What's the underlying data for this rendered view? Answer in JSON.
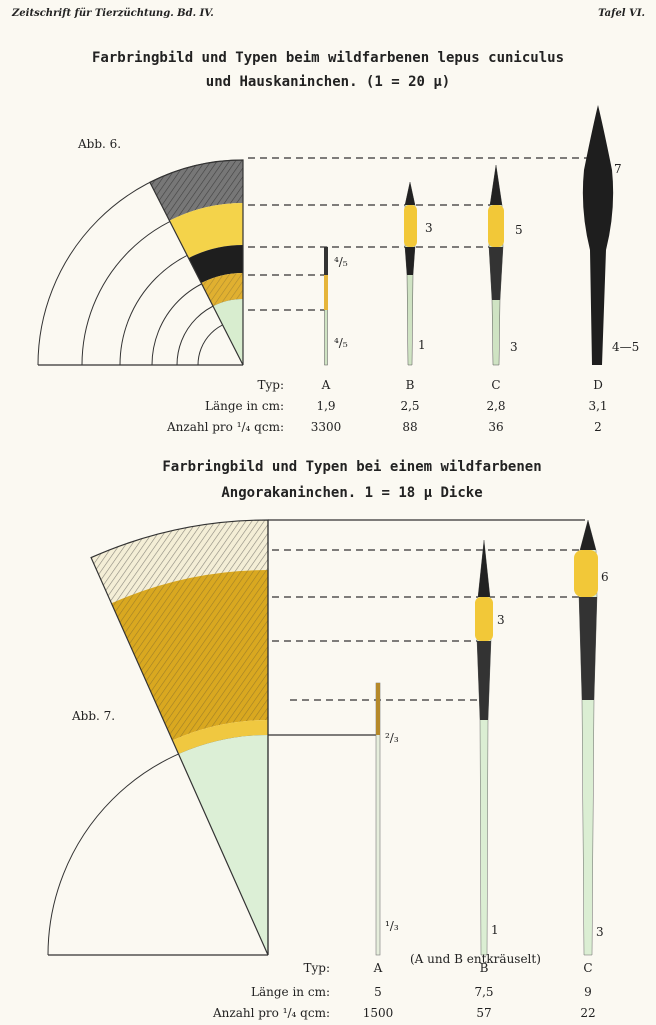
{
  "header": {
    "journal": "Zeitschrift für Tierzüchtung. Bd. IV.",
    "plate": "Tafel VI."
  },
  "figures": [
    {
      "title": [
        "Farbringbild und Typen beim wildfarbenen lepus cuniculus",
        "und Hauskaninchen. (1 = 20 μ)"
      ],
      "label": "Abb. 6.",
      "hair_labels": [
        "⁴/₅",
        "⁴/₅",
        "3",
        "1",
        "5",
        "3",
        "7",
        "4—5"
      ],
      "table": {
        "rows": [
          [
            "Typ:",
            "A",
            "B",
            "C",
            "D"
          ],
          [
            "Länge in cm:",
            "1,9",
            "2,5",
            "2,8",
            "3,1"
          ],
          [
            "Anzahl pro ¹/₄ qcm:",
            "3300",
            "88",
            "36",
            "2"
          ]
        ]
      }
    },
    {
      "title": [
        "Farbringbild und Typen bei einem wildfarbenen",
        "Angorakaninchen. 1 = 18 μ Dicke"
      ],
      "label": "Abb. 7.",
      "hair_labels": [
        "²/₃",
        "¹/₃",
        "3",
        "1",
        "6",
        "3"
      ],
      "note": "(A und B entkräuselt)",
      "table": {
        "rows": [
          [
            "Typ:",
            "A",
            "B",
            "C"
          ],
          [
            "Länge in cm:",
            "5",
            "7,5",
            "9"
          ],
          [
            "Anzahl pro ¹/₄ qcm:",
            "1500",
            "57",
            "22"
          ]
        ]
      }
    }
  ]
}
